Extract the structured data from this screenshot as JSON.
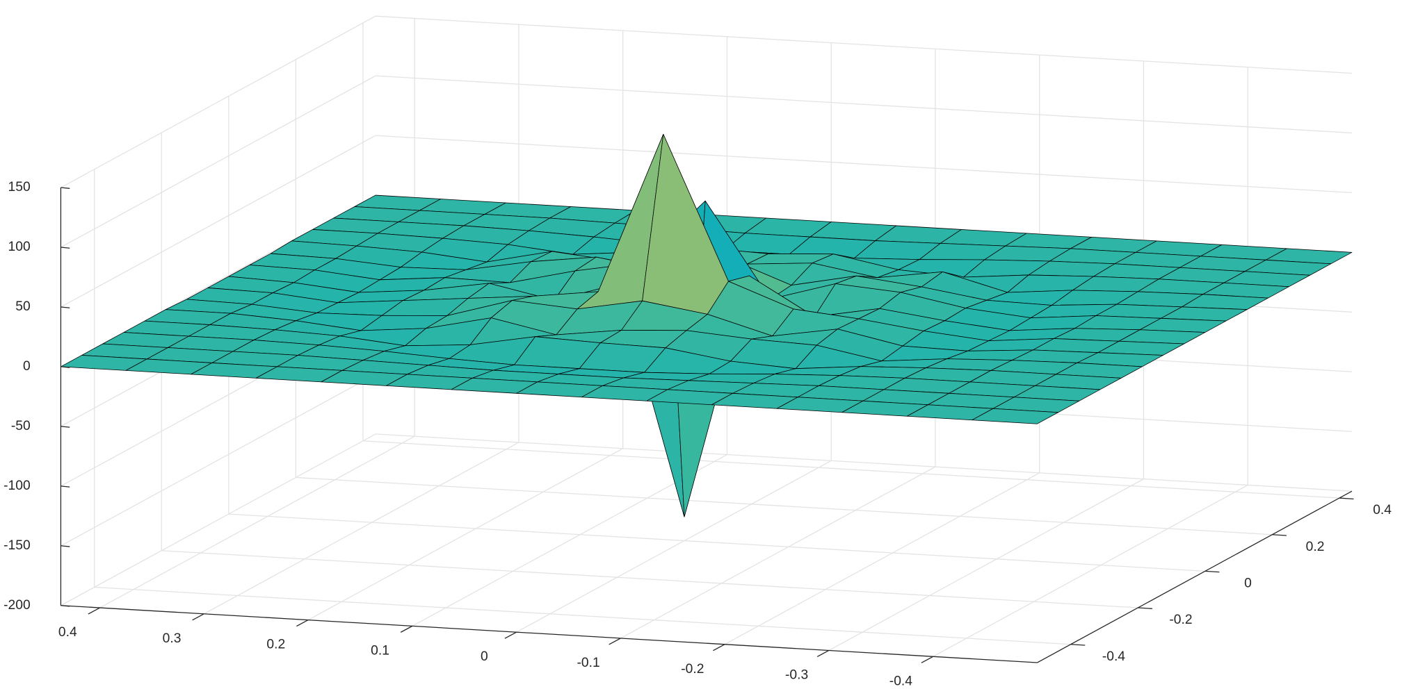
{
  "chart_data": {
    "type": "surface",
    "colormap": "parula",
    "edgecolor": "#000000",
    "grid": true,
    "x": [
      -0.5,
      -0.4375,
      -0.375,
      -0.3125,
      -0.25,
      -0.1875,
      -0.125,
      -0.0625,
      0,
      0.0625,
      0.125,
      0.1875,
      0.25,
      0.3125,
      0.375,
      0.4375
    ],
    "y": [
      -0.5,
      -0.4375,
      -0.375,
      -0.3125,
      -0.25,
      -0.1875,
      -0.125,
      -0.0625,
      0,
      0.0625,
      0.125,
      0.1875,
      0.25,
      0.3125,
      0.375,
      0.4375
    ],
    "z": [
      [
        0,
        0,
        0,
        0,
        0,
        0,
        0,
        0,
        0,
        0,
        0,
        0,
        0,
        0,
        0,
        0
      ],
      [
        0,
        0,
        0,
        0,
        0,
        0,
        0,
        0,
        0,
        0,
        0,
        0,
        0,
        0,
        0,
        0
      ],
      [
        0,
        0,
        0,
        0,
        0,
        -1,
        -2,
        -3,
        -3,
        -3,
        -2,
        -1,
        0,
        0,
        0,
        0
      ],
      [
        0,
        0,
        0,
        0,
        -1,
        -3,
        -6,
        -8,
        -8,
        -8,
        -6,
        -3,
        -1,
        0,
        0,
        0
      ],
      [
        0,
        0,
        0,
        -1,
        -3,
        -8,
        -5,
        3,
        4,
        6,
        -4,
        -8,
        -3,
        -1,
        0,
        0
      ],
      [
        0,
        0,
        -1,
        -3,
        -8,
        2,
        4,
        8,
        5,
        -2,
        9,
        -3,
        -8,
        -3,
        0,
        0
      ],
      [
        0,
        -1,
        -2,
        -6,
        -5,
        6,
        -3,
        12,
        20,
        10,
        14,
        -2,
        -5,
        -6,
        -2,
        -1
      ],
      [
        0,
        -1,
        -2,
        -7,
        -2,
        5,
        10,
        30,
        150,
        15,
        8,
        3,
        -2,
        -7,
        -2,
        -1
      ],
      [
        0,
        -1,
        -3,
        -8,
        -3,
        4,
        -6,
        25,
        -180,
        12,
        -5,
        6,
        -3,
        -8,
        -3,
        -1
      ],
      [
        0,
        -1,
        -2,
        -7,
        -2,
        8,
        12,
        -4,
        75,
        20,
        10,
        -3,
        -2,
        -7,
        -2,
        -1
      ],
      [
        0,
        -1,
        -2,
        -6,
        -5,
        3,
        9,
        -2,
        18,
        4,
        12,
        5,
        -5,
        -6,
        -2,
        -1
      ],
      [
        0,
        0,
        -1,
        -3,
        -8,
        6,
        -2,
        7,
        3,
        10,
        -1,
        4,
        -8,
        -3,
        -1,
        0
      ],
      [
        0,
        0,
        0,
        -1,
        -3,
        -8,
        -5,
        5,
        2,
        4,
        -3,
        -8,
        -3,
        -1,
        0,
        0
      ],
      [
        0,
        0,
        0,
        0,
        -1,
        -3,
        -6,
        -8,
        -8,
        -8,
        -6,
        -3,
        -1,
        0,
        0,
        0
      ],
      [
        0,
        0,
        0,
        0,
        0,
        -1,
        -2,
        -3,
        -3,
        -3,
        -2,
        -1,
        0,
        0,
        0,
        0
      ],
      [
        0,
        0,
        0,
        0,
        0,
        0,
        0,
        0,
        0,
        0,
        0,
        0,
        0,
        0,
        0,
        0
      ]
    ],
    "xlim": [
      -0.5,
      0.4375
    ],
    "ylim": [
      -0.5,
      0.4375
    ],
    "zlim": [
      -200,
      150
    ],
    "xticks": [
      -0.4,
      -0.3,
      -0.2,
      -0.1,
      0,
      0.1,
      0.2,
      0.3,
      0.4
    ],
    "yticks": [
      -0.4,
      -0.2,
      0,
      0.2,
      0.4
    ],
    "zticks": [
      -200,
      -150,
      -100,
      -50,
      0,
      50,
      100,
      150
    ]
  }
}
